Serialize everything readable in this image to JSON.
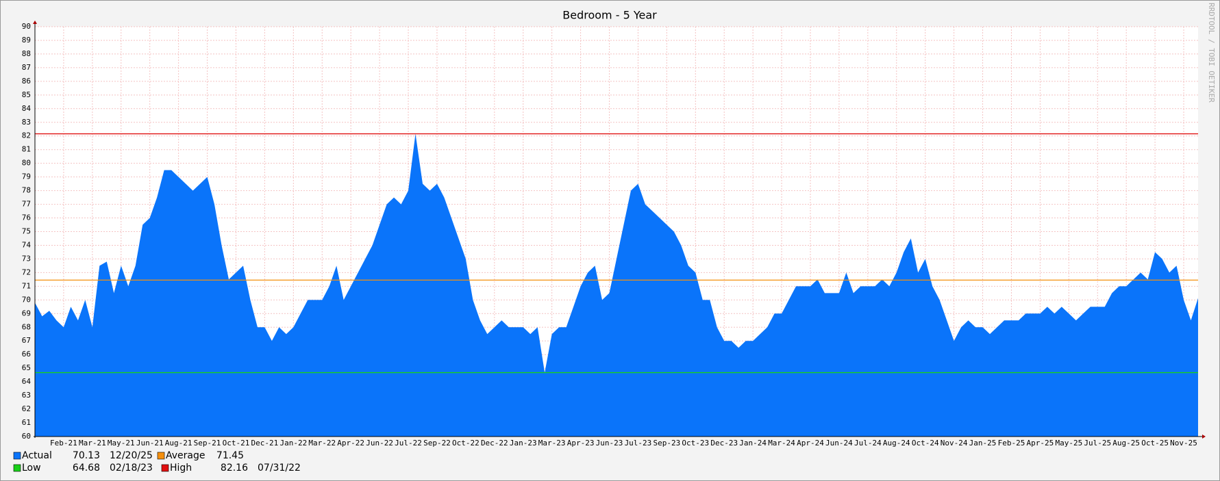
{
  "chart_data": {
    "type": "area",
    "title": "Bedroom - 5 Year",
    "watermark": "RRDTOOL / TOBI OETIKER",
    "color": "#0a74fa",
    "grid": true,
    "ylim": [
      60,
      90
    ],
    "yticks": [
      60,
      61,
      62,
      63,
      64,
      65,
      66,
      67,
      68,
      69,
      70,
      71,
      72,
      73,
      74,
      75,
      76,
      77,
      78,
      79,
      80,
      81,
      82,
      83,
      84,
      85,
      86,
      87,
      88,
      89,
      90
    ],
    "categories": [
      null,
      null,
      null,
      null,
      "Feb-21",
      null,
      null,
      null,
      "Mar-21",
      null,
      null,
      null,
      "May-21",
      null,
      null,
      null,
      "Jun-21",
      null,
      null,
      null,
      "Aug-21",
      null,
      null,
      null,
      "Sep-21",
      null,
      null,
      null,
      "Oct-21",
      null,
      null,
      null,
      "Dec-21",
      null,
      null,
      null,
      "Jan-22",
      null,
      null,
      null,
      "Mar-22",
      null,
      null,
      null,
      "Apr-22",
      null,
      null,
      null,
      "Jun-22",
      null,
      null,
      null,
      "Jul-22",
      null,
      null,
      null,
      "Sep-22",
      null,
      null,
      null,
      "Oct-22",
      null,
      null,
      null,
      "Dec-22",
      null,
      null,
      null,
      "Jan-23",
      null,
      null,
      null,
      "Mar-23",
      null,
      null,
      null,
      "Apr-23",
      null,
      null,
      null,
      "Jun-23",
      null,
      null,
      null,
      "Jul-23",
      null,
      null,
      null,
      "Sep-23",
      null,
      null,
      null,
      "Oct-23",
      null,
      null,
      null,
      "Dec-23",
      null,
      null,
      null,
      "Jan-24",
      null,
      null,
      null,
      "Mar-24",
      null,
      null,
      null,
      "Apr-24",
      null,
      null,
      null,
      "Jun-24",
      null,
      null,
      null,
      "Jul-24",
      null,
      null,
      null,
      "Aug-24",
      null,
      null,
      null,
      "Oct-24",
      null,
      null,
      null,
      "Nov-24",
      null,
      null,
      null,
      "Jan-25",
      null,
      null,
      null,
      "Feb-25",
      null,
      null,
      null,
      "Apr-25",
      null,
      null,
      null,
      "May-25",
      null,
      null,
      null,
      "Jul-25",
      null,
      null,
      null,
      "Aug-25",
      null,
      null,
      null,
      "Oct-25",
      null,
      null,
      null,
      "Nov-25",
      null,
      null
    ],
    "values": [
      69.8,
      68.8,
      69.2,
      68.5,
      68,
      69.5,
      68.5,
      70,
      68,
      72.5,
      72.8,
      70.5,
      72.5,
      71,
      72.5,
      75.5,
      76,
      77.5,
      79.5,
      79.5,
      79,
      78.5,
      78,
      78.5,
      79,
      77,
      74,
      71.5,
      72,
      72.5,
      70,
      68,
      68,
      67,
      68,
      67.5,
      68,
      69,
      70,
      70,
      70,
      71,
      72.5,
      70,
      71,
      72,
      73,
      74,
      75.5,
      77,
      77.5,
      77,
      78,
      82.16,
      78.5,
      78,
      78.5,
      77.5,
      76,
      74.5,
      73,
      70,
      68.5,
      67.5,
      68,
      68.5,
      68,
      68,
      68,
      67.5,
      68,
      64.68,
      67.5,
      68,
      68,
      69.5,
      71,
      72,
      72.5,
      70,
      70.5,
      73,
      75.5,
      78,
      78.5,
      77,
      76.5,
      76,
      75.5,
      75,
      74,
      72.5,
      72,
      70,
      70,
      68,
      67,
      67,
      66.5,
      67,
      67,
      67.5,
      68,
      69,
      69,
      70,
      71,
      71,
      71,
      71.5,
      70.5,
      70.5,
      70.5,
      72,
      70.5,
      71,
      71,
      71,
      71.5,
      71,
      72,
      73.5,
      74.5,
      72,
      73,
      71,
      70,
      68.5,
      67,
      68,
      68.5,
      68,
      68,
      67.5,
      68,
      68.5,
      68.5,
      68.5,
      69,
      69,
      69,
      69.5,
      69,
      69.5,
      69,
      68.5,
      69,
      69.5,
      69.5,
      69.5,
      70.5,
      71,
      71,
      71.5,
      72,
      71.5,
      73.5,
      73,
      72,
      72.5,
      70,
      68.5,
      70.13
    ],
    "legend": [
      {
        "name": "Actual",
        "color": "#0a74fa",
        "value": 70.13,
        "date": "12/20/25"
      },
      {
        "name": "Average",
        "color": "#f5900e",
        "value": 71.45
      },
      {
        "name": "Low",
        "color": "#19d019",
        "value": 64.68,
        "date": "02/18/23"
      },
      {
        "name": "High",
        "color": "#e01010",
        "value": 82.16,
        "date": "07/31/22"
      }
    ]
  }
}
